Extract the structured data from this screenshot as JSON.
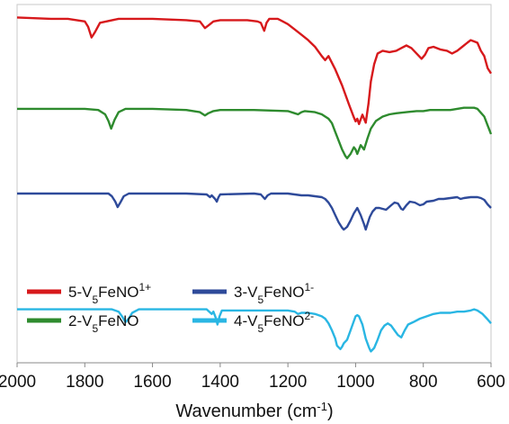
{
  "chart_data": {
    "type": "line",
    "xlabel_main": "Wavenumber (cm",
    "xlabel_sup": "-1",
    "xlabel_close": ")",
    "xlim": [
      2000,
      600
    ],
    "x_reversed": true,
    "y_axis_shown": false,
    "grid": false,
    "legend_position": "bottom-left",
    "x_ticks": [
      "2000",
      "1800",
      "1600",
      "1400",
      "1200",
      "1000",
      "800",
      "600"
    ],
    "series": [
      {
        "legend_base": "5-V",
        "legend_sub": "5",
        "legend_main": "FeNO",
        "legend_sup": "1+",
        "color": "#d7191c",
        "points": [
          [
            2000,
            95
          ],
          [
            1900,
            94
          ],
          [
            1850,
            94
          ],
          [
            1800,
            92
          ],
          [
            1790,
            88
          ],
          [
            1780,
            80
          ],
          [
            1770,
            84
          ],
          [
            1755,
            91
          ],
          [
            1700,
            94
          ],
          [
            1600,
            94
          ],
          [
            1500,
            93
          ],
          [
            1460,
            92
          ],
          [
            1445,
            87
          ],
          [
            1435,
            89
          ],
          [
            1420,
            92
          ],
          [
            1400,
            93
          ],
          [
            1320,
            93
          ],
          [
            1290,
            92
          ],
          [
            1280,
            91
          ],
          [
            1270,
            85
          ],
          [
            1263,
            91
          ],
          [
            1255,
            94
          ],
          [
            1230,
            94
          ],
          [
            1215,
            92
          ],
          [
            1200,
            90
          ],
          [
            1180,
            86
          ],
          [
            1160,
            82
          ],
          [
            1140,
            78
          ],
          [
            1120,
            73
          ],
          [
            1100,
            66
          ],
          [
            1090,
            63
          ],
          [
            1080,
            66
          ],
          [
            1060,
            56
          ],
          [
            1040,
            44
          ],
          [
            1020,
            30
          ],
          [
            1005,
            20
          ],
          [
            1000,
            17
          ],
          [
            995,
            19
          ],
          [
            990,
            15
          ],
          [
            980,
            22
          ],
          [
            970,
            16
          ],
          [
            962,
            30
          ],
          [
            955,
            47
          ],
          [
            945,
            60
          ],
          [
            935,
            68
          ],
          [
            920,
            70
          ],
          [
            900,
            69
          ],
          [
            880,
            70
          ],
          [
            865,
            72
          ],
          [
            850,
            74
          ],
          [
            835,
            72
          ],
          [
            820,
            68
          ],
          [
            805,
            64
          ],
          [
            795,
            67
          ],
          [
            785,
            72
          ],
          [
            770,
            73
          ],
          [
            750,
            71
          ],
          [
            730,
            70
          ],
          [
            715,
            68
          ],
          [
            700,
            70
          ],
          [
            685,
            73
          ],
          [
            670,
            76
          ],
          [
            660,
            78
          ],
          [
            650,
            77
          ],
          [
            640,
            76
          ],
          [
            630,
            70
          ],
          [
            620,
            66
          ],
          [
            610,
            57
          ],
          [
            600,
            53
          ]
        ]
      },
      {
        "legend_base": "2-V",
        "legend_sub": "5",
        "legend_main": "FeNO",
        "legend_sup": "",
        "color": "#2e8b2e",
        "points": [
          [
            2000,
            73
          ],
          [
            1900,
            73
          ],
          [
            1800,
            73
          ],
          [
            1760,
            72
          ],
          [
            1740,
            68
          ],
          [
            1730,
            62
          ],
          [
            1722,
            55
          ],
          [
            1712,
            63
          ],
          [
            1700,
            70
          ],
          [
            1680,
            73
          ],
          [
            1600,
            73
          ],
          [
            1500,
            72
          ],
          [
            1460,
            70
          ],
          [
            1445,
            67
          ],
          [
            1435,
            69
          ],
          [
            1420,
            71
          ],
          [
            1400,
            72
          ],
          [
            1300,
            72
          ],
          [
            1200,
            71
          ],
          [
            1180,
            69
          ],
          [
            1170,
            68
          ],
          [
            1160,
            70
          ],
          [
            1150,
            71
          ],
          [
            1120,
            70
          ],
          [
            1100,
            68
          ],
          [
            1080,
            64
          ],
          [
            1070,
            60
          ],
          [
            1060,
            52
          ],
          [
            1050,
            44
          ],
          [
            1040,
            36
          ],
          [
            1030,
            30
          ],
          [
            1025,
            28
          ],
          [
            1015,
            32
          ],
          [
            1005,
            38
          ],
          [
            1000,
            36
          ],
          [
            995,
            32
          ],
          [
            985,
            40
          ],
          [
            975,
            36
          ],
          [
            965,
            46
          ],
          [
            955,
            55
          ],
          [
            940,
            62
          ],
          [
            920,
            66
          ],
          [
            900,
            68
          ],
          [
            880,
            69
          ],
          [
            850,
            70
          ],
          [
            820,
            71
          ],
          [
            800,
            71
          ],
          [
            780,
            72
          ],
          [
            760,
            72
          ],
          [
            740,
            72
          ],
          [
            720,
            72
          ],
          [
            700,
            73
          ],
          [
            680,
            74
          ],
          [
            660,
            74
          ],
          [
            650,
            74
          ],
          [
            640,
            73
          ],
          [
            620,
            66
          ],
          [
            610,
            58
          ],
          [
            600,
            50
          ]
        ]
      },
      {
        "legend_base": "3-V",
        "legend_sub": "5",
        "legend_main": "FeNO",
        "legend_sup": "1-",
        "color": "#2e4a9a",
        "points": [
          [
            2000,
            50
          ],
          [
            1900,
            50
          ],
          [
            1800,
            50
          ],
          [
            1730,
            50
          ],
          [
            1720,
            47
          ],
          [
            1710,
            41
          ],
          [
            1703,
            35
          ],
          [
            1695,
            40
          ],
          [
            1685,
            47
          ],
          [
            1670,
            50
          ],
          [
            1600,
            50
          ],
          [
            1500,
            50
          ],
          [
            1440,
            49
          ],
          [
            1430,
            46
          ],
          [
            1425,
            48
          ],
          [
            1415,
            44
          ],
          [
            1410,
            41
          ],
          [
            1405,
            46
          ],
          [
            1400,
            49
          ],
          [
            1300,
            50
          ],
          [
            1280,
            49
          ],
          [
            1268,
            44
          ],
          [
            1260,
            48
          ],
          [
            1250,
            50
          ],
          [
            1200,
            50
          ],
          [
            1180,
            49
          ],
          [
            1160,
            48
          ],
          [
            1140,
            48
          ],
          [
            1120,
            47
          ],
          [
            1100,
            46
          ],
          [
            1090,
            44
          ],
          [
            1080,
            40
          ],
          [
            1070,
            34
          ],
          [
            1060,
            26
          ],
          [
            1050,
            18
          ],
          [
            1040,
            12
          ],
          [
            1035,
            10
          ],
          [
            1025,
            13
          ],
          [
            1015,
            20
          ],
          [
            1005,
            28
          ],
          [
            995,
            34
          ],
          [
            990,
            30
          ],
          [
            985,
            26
          ],
          [
            975,
            16
          ],
          [
            970,
            10
          ],
          [
            965,
            16
          ],
          [
            958,
            24
          ],
          [
            950,
            30
          ],
          [
            940,
            34
          ],
          [
            930,
            34
          ],
          [
            920,
            33
          ],
          [
            910,
            32
          ],
          [
            895,
            37
          ],
          [
            885,
            40
          ],
          [
            875,
            39
          ],
          [
            865,
            33
          ],
          [
            860,
            32
          ],
          [
            850,
            37
          ],
          [
            840,
            41
          ],
          [
            825,
            40
          ],
          [
            810,
            37
          ],
          [
            800,
            38
          ],
          [
            790,
            41
          ],
          [
            770,
            42
          ],
          [
            755,
            44
          ],
          [
            740,
            44
          ],
          [
            720,
            45
          ],
          [
            700,
            46
          ],
          [
            690,
            44
          ],
          [
            680,
            45
          ],
          [
            660,
            46
          ],
          [
            640,
            46
          ],
          [
            630,
            45
          ],
          [
            620,
            43
          ],
          [
            610,
            38
          ],
          [
            600,
            34
          ]
        ]
      },
      {
        "legend_base": "4-V",
        "legend_sub": "5",
        "legend_main": "FeNO",
        "legend_sup": "2-",
        "color": "#29b6e3",
        "points": [
          [
            2000,
            28
          ],
          [
            1900,
            28
          ],
          [
            1800,
            28
          ],
          [
            1720,
            28
          ],
          [
            1700,
            26
          ],
          [
            1690,
            22
          ],
          [
            1680,
            17
          ],
          [
            1670,
            20
          ],
          [
            1660,
            25
          ],
          [
            1640,
            28
          ],
          [
            1600,
            28
          ],
          [
            1500,
            28
          ],
          [
            1440,
            28
          ],
          [
            1425,
            24
          ],
          [
            1420,
            26
          ],
          [
            1412,
            20
          ],
          [
            1408,
            15
          ],
          [
            1402,
            22
          ],
          [
            1395,
            27
          ],
          [
            1300,
            27
          ],
          [
            1200,
            27
          ],
          [
            1180,
            26
          ],
          [
            1170,
            24
          ],
          [
            1160,
            25
          ],
          [
            1140,
            25
          ],
          [
            1120,
            24
          ],
          [
            1100,
            22
          ],
          [
            1090,
            20
          ],
          [
            1080,
            16
          ],
          [
            1070,
            10
          ],
          [
            1060,
            3
          ],
          [
            1055,
            -3
          ],
          [
            1045,
            -6
          ],
          [
            1040,
            -4
          ],
          [
            1035,
            -1
          ],
          [
            1025,
            2
          ],
          [
            1015,
            10
          ],
          [
            1005,
            18
          ],
          [
            1000,
            22
          ],
          [
            995,
            23
          ],
          [
            990,
            22
          ],
          [
            980,
            15
          ],
          [
            970,
            3
          ],
          [
            960,
            -5
          ],
          [
            955,
            -8
          ],
          [
            945,
            -5
          ],
          [
            935,
            2
          ],
          [
            925,
            10
          ],
          [
            915,
            14
          ],
          [
            905,
            16
          ],
          [
            895,
            14
          ],
          [
            885,
            10
          ],
          [
            875,
            6
          ],
          [
            865,
            4
          ],
          [
            855,
            10
          ],
          [
            845,
            15
          ],
          [
            830,
            17
          ],
          [
            810,
            20
          ],
          [
            790,
            22
          ],
          [
            770,
            24
          ],
          [
            750,
            25
          ],
          [
            720,
            25
          ],
          [
            700,
            26
          ],
          [
            680,
            26
          ],
          [
            660,
            27
          ],
          [
            650,
            28
          ],
          [
            640,
            27
          ],
          [
            625,
            24
          ],
          [
            612,
            20
          ],
          [
            600,
            16
          ]
        ]
      }
    ]
  }
}
